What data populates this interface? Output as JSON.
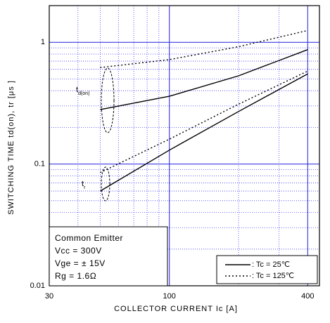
{
  "chart_data": {
    "type": "line",
    "xlabel": "COLLECTOR CURRENT Ic [A]",
    "ylabel": "SWITCHING TIME  td(on), tr  [μs ]",
    "log_x": true,
    "log_y": true,
    "grid": true,
    "xlim": [
      30,
      450
    ],
    "ylim": [
      0.01,
      2
    ],
    "xticks": [
      30,
      100,
      400
    ],
    "yticks": [
      0.01,
      0.1,
      1
    ],
    "minor_xticks": [
      40,
      50,
      60,
      70,
      80,
      90,
      200,
      300
    ],
    "minor_yticks": [
      0.02,
      0.03,
      0.04,
      0.05,
      0.06,
      0.07,
      0.08,
      0.09,
      0.2,
      0.3,
      0.4,
      0.5,
      0.6,
      0.7,
      0.8,
      0.9
    ],
    "x": [
      50,
      100,
      200,
      400
    ],
    "series": [
      {
        "color": "#000000",
        "style": "solid",
        "values": [
          0.28,
          0.36,
          0.53,
          0.87
        ]
      },
      {
        "color": "#000000",
        "style": "dotted",
        "values": [
          0.62,
          0.72,
          0.92,
          1.25
        ]
      },
      {
        "color": "#000000",
        "style": "solid",
        "values": [
          0.06,
          0.13,
          0.27,
          0.55
        ]
      },
      {
        "color": "#000000",
        "style": "dotted",
        "values": [
          0.085,
          0.16,
          0.31,
          0.58
        ]
      }
    ],
    "legend": [
      {
        "label": ": Tc =  25℃",
        "style": "solid"
      },
      {
        "label": ": Tc = 125℃",
        "style": "dotted"
      }
    ],
    "annotations": [
      {
        "text": "t",
        "sub": "d(on)"
      },
      {
        "text": "t",
        "sub": "r"
      }
    ],
    "conditions": [
      "Common Emitter",
      "Vcc = 300V",
      "Vge = ±  15V",
      "Rg = 1.6Ω"
    ]
  }
}
